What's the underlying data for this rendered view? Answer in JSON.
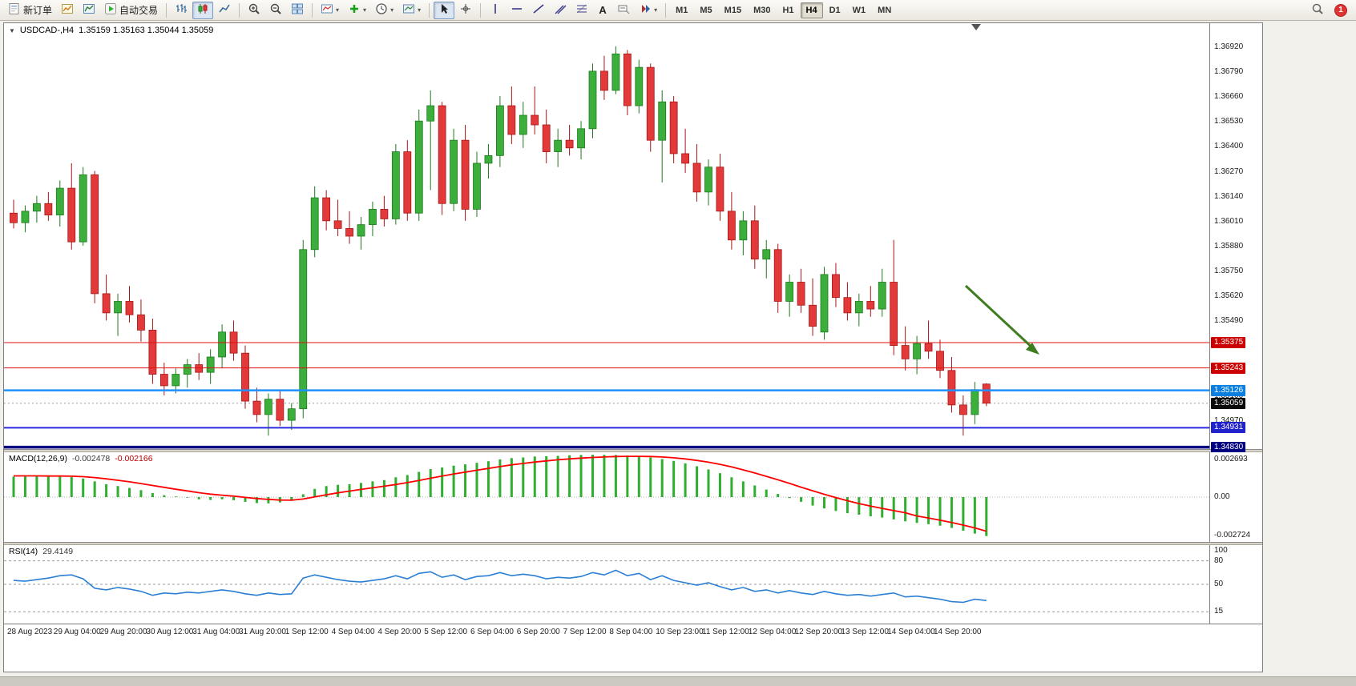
{
  "toolbar": {
    "new_order": "新订单",
    "auto_trading": "自动交易",
    "timeframes": [
      "M1",
      "M5",
      "M15",
      "M30",
      "H1",
      "H4",
      "D1",
      "W1",
      "MN"
    ],
    "active_timeframe": "H4",
    "notification_count": "1"
  },
  "chart": {
    "symbol_period": "USDCAD-,H4",
    "ohlc_text": "1.35159 1.35163 1.35044 1.35059",
    "macd_label": "MACD(12,26,9)",
    "macd_value_1": "-0.002478",
    "macd_value_2": "-0.002166",
    "rsi_label": "RSI(14)",
    "rsi_value": "29.4149"
  },
  "chart_data": {
    "type": "candlestick",
    "symbol": "USDCAD-",
    "timeframe": "H4",
    "current_bar": {
      "open": 1.35159,
      "high": 1.35163,
      "low": 1.35044,
      "close": 1.35059
    },
    "current_price": 1.35059,
    "current_price_label": "1.35059",
    "arrow_color": "#3f7d1f",
    "up_color": "#3cae3c",
    "down_color": "#e23a3a",
    "y_ticks": [
      "1.36920",
      "1.36790",
      "1.36660",
      "1.36530",
      "1.36400",
      "1.36270",
      "1.36140",
      "1.36010",
      "1.35880",
      "1.35750",
      "1.35620",
      "1.35490",
      "1.35360",
      "1.35230",
      "1.35100",
      "1.34970",
      "1.34840"
    ],
    "time_labels": [
      "28 Aug 2023",
      "29 Aug 04:00",
      "29 Aug 20:00",
      "30 Aug 12:00",
      "31 Aug 04:00",
      "31 Aug 20:00",
      "1 Sep 12:00",
      "4 Sep 04:00",
      "4 Sep 20:00",
      "5 Sep 12:00",
      "6 Sep 04:00",
      "6 Sep 20:00",
      "7 Sep 12:00",
      "8 Sep 04:00",
      "10 Sep 23:00",
      "11 Sep 12:00",
      "12 Sep 04:00",
      "12 Sep 20:00",
      "13 Sep 12:00",
      "14 Sep 04:00",
      "14 Sep 20:00"
    ],
    "hlines": [
      {
        "price": 1.35375,
        "label": "1.35375",
        "color": "#e01010",
        "width": 1,
        "tag_bg": "#cc0000"
      },
      {
        "price": 1.35243,
        "label": "1.35243",
        "color": "#e01010",
        "width": 1,
        "tag_bg": "#cc0000"
      },
      {
        "price": 1.35126,
        "label": "1.35126",
        "color": "#1e90ff",
        "width": 2.5,
        "tag_bg": "#0b7fe0"
      },
      {
        "price": 1.34931,
        "label": "1.34931",
        "color": "#2a2ae0",
        "width": 2,
        "tag_bg": "#2222cc"
      },
      {
        "price": 1.3483,
        "label": "1.34830",
        "color": "#000080",
        "width": 3.5,
        "tag_bg": "#000080"
      }
    ],
    "candles": [
      [
        1.3605,
        1.3612,
        1.3597,
        1.36
      ],
      [
        1.36,
        1.3609,
        1.3595,
        1.3606
      ],
      [
        1.3606,
        1.3614,
        1.36,
        1.361
      ],
      [
        1.361,
        1.3616,
        1.3601,
        1.3604
      ],
      [
        1.3604,
        1.3622,
        1.3598,
        1.3618
      ],
      [
        1.3618,
        1.3631,
        1.3586,
        1.359
      ],
      [
        1.359,
        1.3629,
        1.3588,
        1.3625
      ],
      [
        1.3625,
        1.3627,
        1.3558,
        1.3563
      ],
      [
        1.3563,
        1.3573,
        1.3549,
        1.3553
      ],
      [
        1.3553,
        1.3563,
        1.3541,
        1.3559
      ],
      [
        1.3559,
        1.3567,
        1.3548,
        1.3552
      ],
      [
        1.3552,
        1.356,
        1.3538,
        1.3544
      ],
      [
        1.3544,
        1.355,
        1.3516,
        1.3521
      ],
      [
        1.3521,
        1.3527,
        1.351,
        1.3515
      ],
      [
        1.3515,
        1.3524,
        1.3511,
        1.3521
      ],
      [
        1.3521,
        1.3529,
        1.3514,
        1.3526
      ],
      [
        1.3526,
        1.3532,
        1.3518,
        1.3522
      ],
      [
        1.3522,
        1.3534,
        1.3516,
        1.353
      ],
      [
        1.353,
        1.3547,
        1.3524,
        1.3543
      ],
      [
        1.3543,
        1.3549,
        1.3528,
        1.3532
      ],
      [
        1.3532,
        1.3536,
        1.3503,
        1.3507
      ],
      [
        1.3507,
        1.3514,
        1.3496,
        1.35
      ],
      [
        1.35,
        1.3511,
        1.3489,
        1.3508
      ],
      [
        1.3508,
        1.3513,
        1.3494,
        1.3497
      ],
      [
        1.3497,
        1.3506,
        1.3492,
        1.3503
      ],
      [
        1.3503,
        1.3591,
        1.3498,
        1.3586
      ],
      [
        1.3586,
        1.3619,
        1.3582,
        1.3613
      ],
      [
        1.3613,
        1.3617,
        1.3596,
        1.3601
      ],
      [
        1.3601,
        1.3612,
        1.3593,
        1.3597
      ],
      [
        1.3597,
        1.3606,
        1.3589,
        1.3593
      ],
      [
        1.3593,
        1.3603,
        1.3586,
        1.3599
      ],
      [
        1.3599,
        1.3611,
        1.3593,
        1.3607
      ],
      [
        1.3607,
        1.3614,
        1.3598,
        1.3602
      ],
      [
        1.3602,
        1.3641,
        1.3599,
        1.3637
      ],
      [
        1.3637,
        1.3643,
        1.3601,
        1.3605
      ],
      [
        1.3605,
        1.3659,
        1.3601,
        1.3653
      ],
      [
        1.3653,
        1.3669,
        1.3617,
        1.3661
      ],
      [
        1.3661,
        1.3663,
        1.3604,
        1.361
      ],
      [
        1.361,
        1.3649,
        1.3606,
        1.3643
      ],
      [
        1.3643,
        1.3651,
        1.3601,
        1.3607
      ],
      [
        1.3607,
        1.3637,
        1.3603,
        1.3631
      ],
      [
        1.3631,
        1.3641,
        1.3623,
        1.3635
      ],
      [
        1.3635,
        1.3666,
        1.3629,
        1.3661
      ],
      [
        1.3661,
        1.3671,
        1.3641,
        1.3646
      ],
      [
        1.3646,
        1.3663,
        1.3639,
        1.3656
      ],
      [
        1.3656,
        1.3671,
        1.3646,
        1.3651
      ],
      [
        1.3651,
        1.3659,
        1.3631,
        1.3637
      ],
      [
        1.3637,
        1.3649,
        1.3629,
        1.3643
      ],
      [
        1.3643,
        1.3651,
        1.3635,
        1.3639
      ],
      [
        1.3639,
        1.3653,
        1.3633,
        1.3649
      ],
      [
        1.3649,
        1.3683,
        1.3644,
        1.3679
      ],
      [
        1.3679,
        1.3687,
        1.3664,
        1.3669
      ],
      [
        1.3669,
        1.3692,
        1.3667,
        1.3688
      ],
      [
        1.3688,
        1.369,
        1.3656,
        1.3661
      ],
      [
        1.3661,
        1.3685,
        1.3657,
        1.3681
      ],
      [
        1.3681,
        1.3683,
        1.3637,
        1.3643
      ],
      [
        1.3643,
        1.3669,
        1.3621,
        1.3663
      ],
      [
        1.3663,
        1.3666,
        1.3631,
        1.3636
      ],
      [
        1.3636,
        1.3649,
        1.3626,
        1.3631
      ],
      [
        1.3631,
        1.3641,
        1.3611,
        1.3616
      ],
      [
        1.3616,
        1.3633,
        1.3609,
        1.3629
      ],
      [
        1.3629,
        1.3636,
        1.3601,
        1.3606
      ],
      [
        1.3606,
        1.3616,
        1.3586,
        1.3591
      ],
      [
        1.3591,
        1.3606,
        1.3583,
        1.3601
      ],
      [
        1.3601,
        1.3609,
        1.3576,
        1.3581
      ],
      [
        1.3581,
        1.3591,
        1.3571,
        1.3586
      ],
      [
        1.3586,
        1.3589,
        1.3553,
        1.3559
      ],
      [
        1.3559,
        1.3573,
        1.3551,
        1.3569
      ],
      [
        1.3569,
        1.3576,
        1.3553,
        1.3557
      ],
      [
        1.3557,
        1.3571,
        1.3541,
        1.3546
      ],
      [
        1.3543,
        1.3577,
        1.3539,
        1.3573
      ],
      [
        1.3573,
        1.3579,
        1.3556,
        1.3561
      ],
      [
        1.3561,
        1.3569,
        1.3549,
        1.3553
      ],
      [
        1.3553,
        1.3563,
        1.3546,
        1.3559
      ],
      [
        1.3559,
        1.3567,
        1.3551,
        1.3555
      ],
      [
        1.3555,
        1.3576,
        1.3551,
        1.3569
      ],
      [
        1.3569,
        1.3591,
        1.3531,
        1.3536
      ],
      [
        1.3536,
        1.3546,
        1.3523,
        1.3529
      ],
      [
        1.3529,
        1.3541,
        1.3521,
        1.3537
      ],
      [
        1.3537,
        1.3549,
        1.3529,
        1.3533
      ],
      [
        1.3533,
        1.3539,
        1.3519,
        1.3523
      ],
      [
        1.3523,
        1.353,
        1.3501,
        1.3505
      ],
      [
        1.3505,
        1.351,
        1.3489,
        1.35
      ],
      [
        1.35,
        1.3517,
        1.3495,
        1.3513
      ],
      [
        1.35159,
        1.35163,
        1.35044,
        1.35059
      ]
    ],
    "macd": {
      "label": "MACD(12,26,9)",
      "value_main": -0.002478,
      "value_signal": -0.002166,
      "scale": [
        "0.002693",
        "0.00",
        "-0.002724"
      ],
      "histogram": [
        0.0013,
        0.00138,
        0.00135,
        0.00132,
        0.00136,
        0.00128,
        0.00118,
        0.001,
        0.00082,
        0.0007,
        0.00058,
        0.00044,
        0.00026,
        0.00012,
        4e-05,
        -4e-05,
        -0.00014,
        -0.00018,
        -0.00014,
        -0.0002,
        -0.0003,
        -0.00038,
        -0.0004,
        -0.00034,
        -0.00022,
        0.00018,
        0.00052,
        0.0007,
        0.00078,
        0.00082,
        0.0009,
        0.001,
        0.00108,
        0.00126,
        0.0014,
        0.0016,
        0.00178,
        0.00188,
        0.002,
        0.00208,
        0.00218,
        0.00228,
        0.0024,
        0.00248,
        0.00252,
        0.00258,
        0.0026,
        0.00262,
        0.00266,
        0.00268,
        0.00269,
        0.00269,
        0.00268,
        0.00264,
        0.0026,
        0.00252,
        0.00242,
        0.0023,
        0.00214,
        0.00196,
        0.00176,
        0.00152,
        0.00126,
        0.001,
        0.00074,
        0.00048,
        0.0002,
        -6e-05,
        -0.0003,
        -0.00054,
        -0.00072,
        -0.00088,
        -0.00102,
        -0.00112,
        -0.00122,
        -0.0013,
        -0.00142,
        -0.00154,
        -0.00164,
        -0.00172,
        -0.00182,
        -0.00196,
        -0.00214,
        -0.00232,
        -0.002478
      ],
      "signal": [
        0.00135,
        0.00135,
        0.00135,
        0.00134,
        0.00134,
        0.00133,
        0.0013,
        0.00124,
        0.00116,
        0.00107,
        0.00097,
        0.00086,
        0.00074,
        0.00062,
        0.0005,
        0.00039,
        0.00028,
        0.00019,
        0.00012,
        6e-05,
        -2e-05,
        -9e-05,
        -0.00015,
        -0.00019,
        -0.0002,
        -0.00012,
        1e-05,
        0.00015,
        0.00027,
        0.00038,
        0.00049,
        0.00059,
        0.00069,
        0.0008,
        0.00092,
        0.00106,
        0.0012,
        0.00134,
        0.00147,
        0.00159,
        0.00171,
        0.00182,
        0.00194,
        0.00205,
        0.00214,
        0.00223,
        0.0023,
        0.00237,
        0.00243,
        0.00248,
        0.00252,
        0.00255,
        0.00258,
        0.00259,
        0.00259,
        0.00258,
        0.00255,
        0.0025,
        0.00243,
        0.00233,
        0.00222,
        0.00208,
        0.00192,
        0.00173,
        0.00153,
        0.00132,
        0.0011,
        0.00087,
        0.00063,
        0.0004,
        0.00018,
        -3e-05,
        -0.00023,
        -0.00041,
        -0.00057,
        -0.00072,
        -0.00086,
        -0.001,
        -0.0012,
        -0.00133,
        -0.00147,
        -0.00162,
        -0.00178,
        -0.00196,
        -0.002166
      ]
    },
    "rsi": {
      "label": "RSI(14)",
      "value": 29.4149,
      "levels": [
        80,
        50,
        15
      ],
      "scale": [
        "100",
        "80",
        "50",
        "15"
      ],
      "values": [
        55,
        54,
        56,
        58,
        61,
        62,
        57,
        45,
        43,
        46,
        44,
        41,
        36,
        39,
        38,
        40,
        39,
        41,
        43,
        41,
        38,
        36,
        39,
        37,
        38,
        58,
        62,
        59,
        56,
        54,
        53,
        55,
        57,
        61,
        57,
        64,
        66,
        59,
        62,
        56,
        60,
        61,
        65,
        61,
        63,
        61,
        57,
        59,
        58,
        60,
        65,
        62,
        68,
        61,
        64,
        56,
        61,
        55,
        52,
        49,
        52,
        47,
        43,
        46,
        41,
        43,
        39,
        42,
        39,
        37,
        41,
        38,
        36,
        37,
        35,
        37,
        39,
        34,
        35,
        33,
        31,
        28,
        27,
        31,
        29.4149
      ]
    }
  }
}
